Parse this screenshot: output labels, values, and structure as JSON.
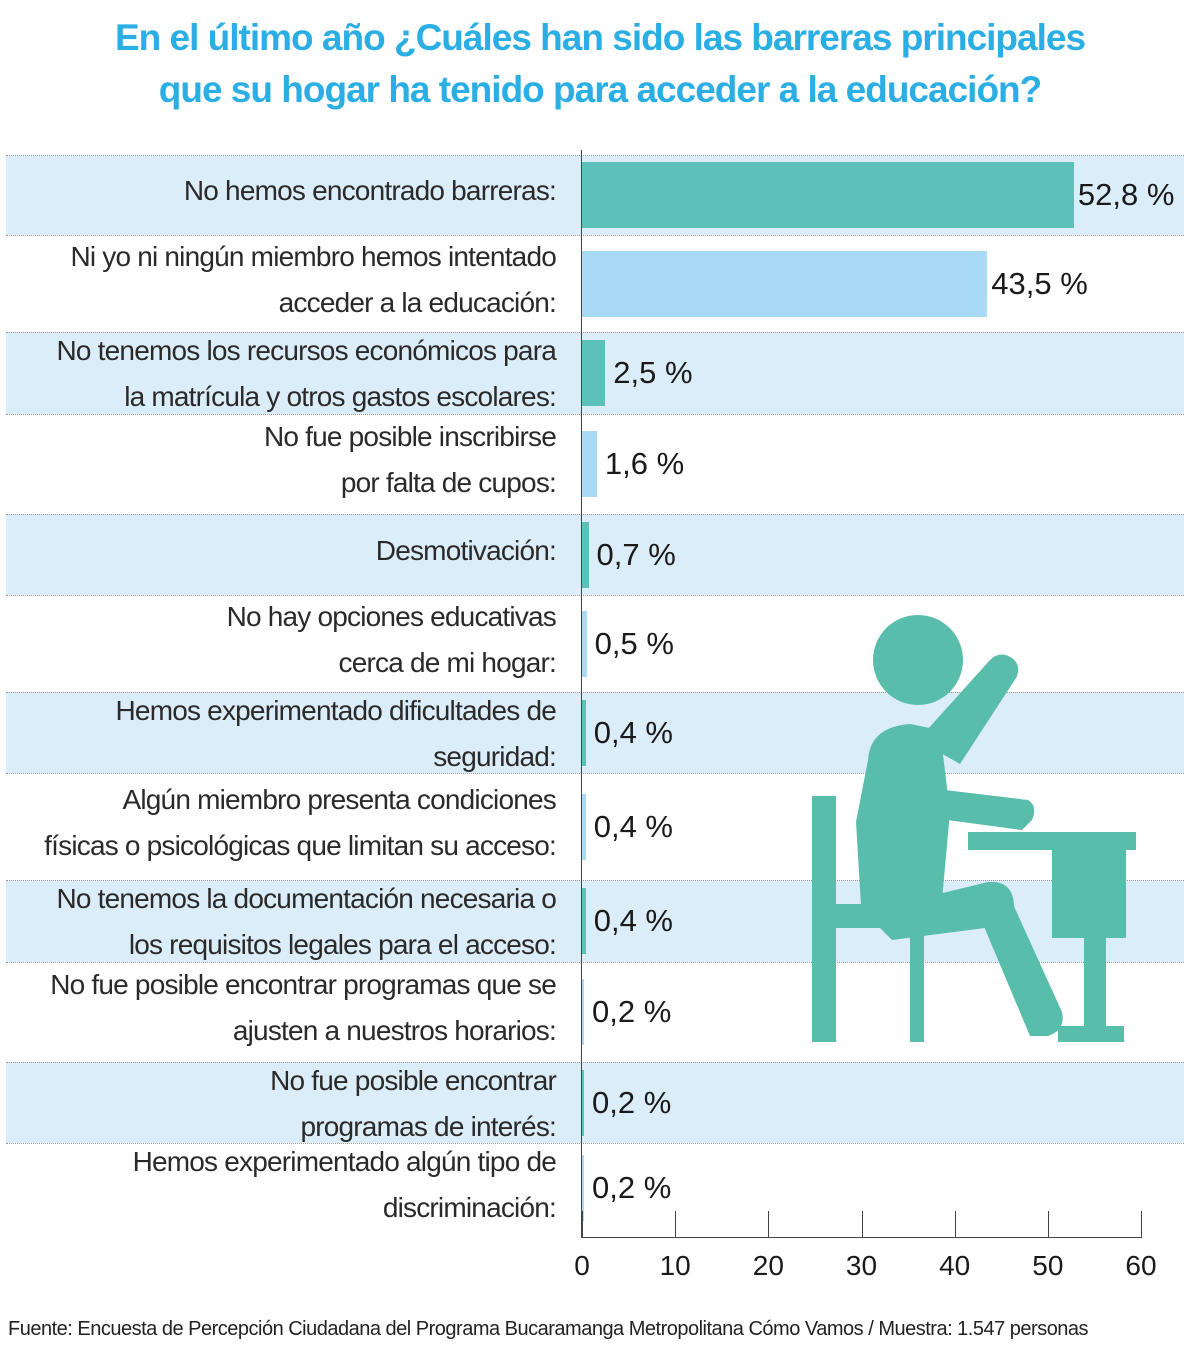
{
  "chart_data": {
    "type": "bar",
    "orientation": "horizontal",
    "title": [
      "En el último año ¿Cuáles han sido las barreras principales",
      "que su hogar ha tenido para acceder a la educación?"
    ],
    "xlim": [
      0,
      60
    ],
    "xticks": [
      "0",
      "10",
      "20",
      "30",
      "40",
      "50",
      "60"
    ],
    "grid": false,
    "categories": [
      [
        "No hemos encontrado barreras:"
      ],
      [
        "Ni yo ni ningún miembro hemos intentado",
        "acceder a la educación:"
      ],
      [
        "No tenemos los recursos económicos para",
        "la matrícula y otros gastos escolares:"
      ],
      [
        "No fue posible inscribirse",
        "por falta de cupos:"
      ],
      [
        "Desmotivación:"
      ],
      [
        "No hay opciones educativas",
        "cerca de mi hogar:"
      ],
      [
        "Hemos experimentado dificultades de",
        "seguridad:"
      ],
      [
        "Algún miembro presenta condiciones",
        "físicas o psicológicas que limitan su acceso:"
      ],
      [
        "No tenemos la documentación necesaria o",
        "los requisitos legales para el acceso:"
      ],
      [
        "No fue posible encontrar programas que se",
        "ajusten a nuestros horarios:"
      ],
      [
        "No fue posible encontrar",
        "programas de interés:"
      ],
      [
        "Hemos experimentado algún tipo de",
        "discriminación:"
      ]
    ],
    "values": [
      52.8,
      43.5,
      2.5,
      1.6,
      0.7,
      0.5,
      0.4,
      0.4,
      0.4,
      0.2,
      0.2,
      0.2
    ],
    "value_labels": [
      "52,8 %",
      "43,5 %",
      "2,5 %",
      "1,6 %",
      "0,7 %",
      "0,5 %",
      "0,4 %",
      "0,4 %",
      "0,4 %",
      "0,2 %",
      "0,2 %",
      "0,2 %"
    ],
    "colors": {
      "title": "#2aaee4",
      "bar_teal": "#5dc1b9",
      "bar_light_blue": "#a8d9f5",
      "row_shade": "#dcedfa",
      "illustration": "#58bdaa"
    }
  },
  "source": "Fuente: Encuesta de Percepción Ciudadana del Programa Bucaramanga Metropolitana Cómo Vamos / Muestra: 1.547 personas",
  "illustration_icon": "student-at-desk-icon"
}
